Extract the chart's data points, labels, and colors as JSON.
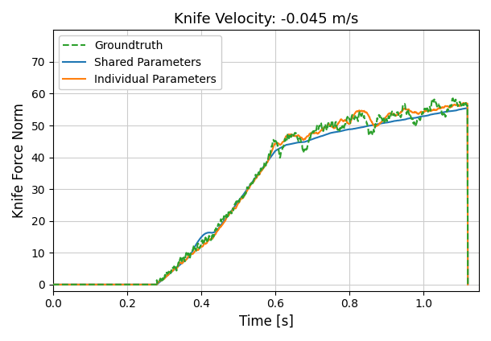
{
  "title": "Knife Velocity: -0.045 m/s",
  "xlabel": "Time [s]",
  "ylabel": "Knife Force Norm",
  "xlim": [
    0.0,
    1.15
  ],
  "ylim": [
    -2,
    80
  ],
  "yticks": [
    0,
    10,
    20,
    30,
    40,
    50,
    60,
    70
  ],
  "xticks": [
    0.0,
    0.2,
    0.4,
    0.6,
    0.8,
    1.0
  ],
  "gt_color": "#2ca02c",
  "shared_color": "#1f77b4",
  "individual_color": "#ff7f0e",
  "gt_label": "Groundtruth",
  "shared_label": "Shared Parameters",
  "individual_label": "Individual Parameters",
  "gt_linestyle": "--",
  "shared_linestyle": "-",
  "individual_linestyle": "-",
  "linewidth": 1.5,
  "gt_linewidth": 1.5,
  "figsize": [
    6.1,
    4.24
  ],
  "dpi": 100
}
